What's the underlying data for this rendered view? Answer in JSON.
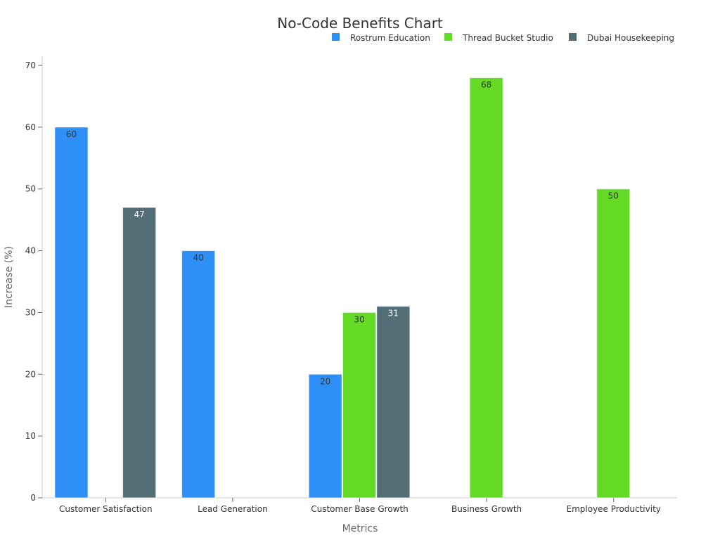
{
  "chart_data": {
    "type": "bar",
    "title": "No-Code Benefits Chart",
    "xlabel": "Metrics",
    "ylabel": "Increase (%)",
    "ylim": [
      0,
      70
    ],
    "yticks": [
      0,
      10,
      20,
      30,
      40,
      50,
      60,
      70
    ],
    "grid": false,
    "legend_position": "top-right",
    "categories": [
      "Customer Satisfaction",
      "Lead Generation",
      "Customer Base Growth",
      "Business Growth",
      "Employee Productivity"
    ],
    "series": [
      {
        "name": "Rostrum Education",
        "color": "#2e90f6",
        "label_color": "#333333",
        "values": [
          60,
          40,
          20,
          null,
          null
        ]
      },
      {
        "name": "Thread Bucket Studio",
        "color": "#64da26",
        "label_color": "#333333",
        "values": [
          null,
          null,
          30,
          68,
          50
        ]
      },
      {
        "name": "Dubai Housekeeping",
        "color": "#546e77",
        "label_color": "#ffffff",
        "values": [
          47,
          null,
          31,
          null,
          null
        ]
      }
    ]
  }
}
